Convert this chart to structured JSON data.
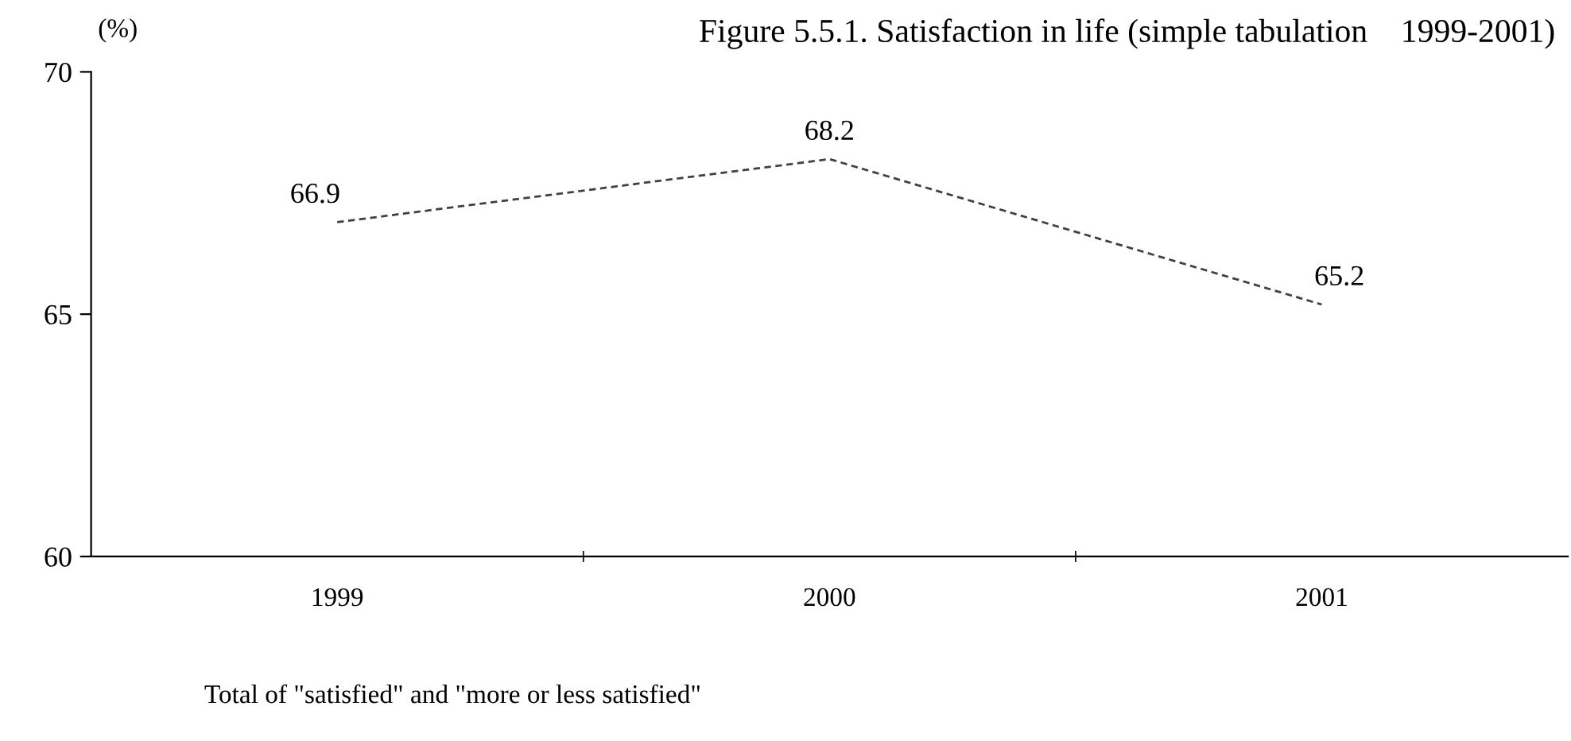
{
  "chart_data": {
    "type": "line",
    "title": "Figure 5.5.1. Satisfaction in life (simple tabulation    1999-2001)",
    "ylabel": "(%)",
    "categories": [
      "1999",
      "2000",
      "2001"
    ],
    "series": [
      {
        "color": "#404040",
        "values": [
          66.9,
          68.2,
          65.2
        ]
      }
    ],
    "ylim": [
      60,
      70
    ],
    "yticks": [
      60,
      65,
      70
    ],
    "grid": false,
    "legend": false,
    "marker": "none",
    "line_style": "dashed",
    "data_labels": true,
    "annotations": [
      "Total of \"satisfied\" and \"more or less satisfied\""
    ]
  }
}
